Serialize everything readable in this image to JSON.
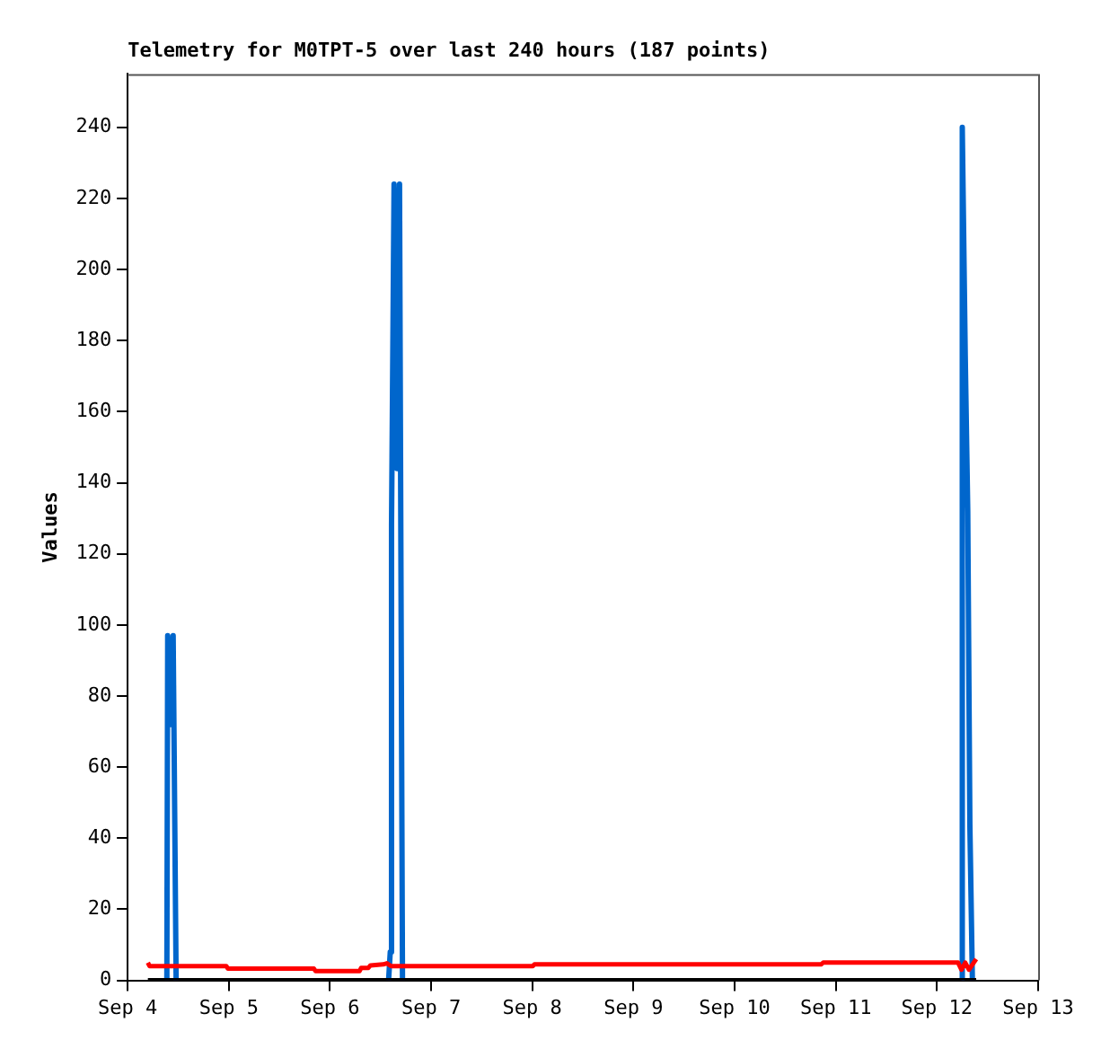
{
  "chart_data": {
    "type": "line",
    "title": "Telemetry for M0TPT-5 over last 240 hours (187 points)",
    "ylabel": "Values",
    "xlim": [
      "--09-04",
      "--09-13"
    ],
    "xticks": [
      {
        "value": "--09-04",
        "label": "Sep 4"
      },
      {
        "value": "--09-05",
        "label": "Sep 5"
      },
      {
        "value": "--09-06",
        "label": "Sep 6"
      },
      {
        "value": "--09-07",
        "label": "Sep 7"
      },
      {
        "value": "--09-08",
        "label": "Sep 8"
      },
      {
        "value": "--09-09",
        "label": "Sep 9"
      },
      {
        "value": "--09-10",
        "label": "Sep 10"
      },
      {
        "value": "--09-11",
        "label": "Sep 11"
      },
      {
        "value": "--09-12",
        "label": "Sep 12"
      },
      {
        "value": "--09-13",
        "label": "Sep 13"
      }
    ],
    "ylim": [
      0,
      255
    ],
    "yticks": [
      0,
      20,
      40,
      60,
      80,
      100,
      120,
      140,
      160,
      180,
      200,
      220,
      240
    ],
    "grid": false,
    "legend": false,
    "marker": "none",
    "line_style": "solid",
    "series": [
      {
        "color": "#000000",
        "x": [
          "--09-04T04:48",
          "--09-12T09:18"
        ],
        "values": [
          0,
          0
        ]
      },
      {
        "color": "#ff0000",
        "x": [
          "--09-04T04:48",
          "--09-04T05:12",
          "--09-04T23:24",
          "--09-04T23:48",
          "--09-05T20:12",
          "--09-05T20:36",
          "--09-06T07:00",
          "--09-06T07:24",
          "--09-06T09:06",
          "--09-06T09:36",
          "--09-06T12:36",
          "--09-06T13:30",
          "--09-06T14:30",
          "--09-08T00:06",
          "--09-08T00:30",
          "--09-10T20:30",
          "--09-10T21:00",
          "--09-12T05:00",
          "--09-12T05:48",
          "--09-12T06:42",
          "--09-12T07:36",
          "--09-12T09:18"
        ],
        "values": [
          5,
          4,
          4,
          3.3,
          3.3,
          2.6,
          2.6,
          3.5,
          3.5,
          4.2,
          4.5,
          4.8,
          4,
          4,
          4.5,
          4.5,
          5,
          5,
          3,
          5,
          3,
          6
        ]
      },
      {
        "color": "#0066cc",
        "x": [
          "--09-04T09:18",
          "--09-04T09:30",
          "--09-04T10:12",
          "--09-04T10:48",
          "--09-04T11:30",
          "--09-05T12:00",
          "--09-06T13:54",
          "--09-06T14:18",
          "--09-06T14:36",
          "--09-06T15:12",
          "--09-06T15:54",
          "--09-06T16:30",
          "--09-06T17:12",
          "--09-09T12:00",
          "--09-12T05:48",
          "--09-12T06:00",
          "--09-12T06:42",
          "--09-12T07:18",
          "--09-12T07:48",
          "--09-12T08:24"
        ],
        "values": [
          0,
          97,
          72,
          97,
          0,
          null,
          0,
          8,
          128,
          224,
          144,
          224,
          0,
          null,
          0,
          240,
          176,
          132,
          44,
          0
        ]
      }
    ]
  }
}
